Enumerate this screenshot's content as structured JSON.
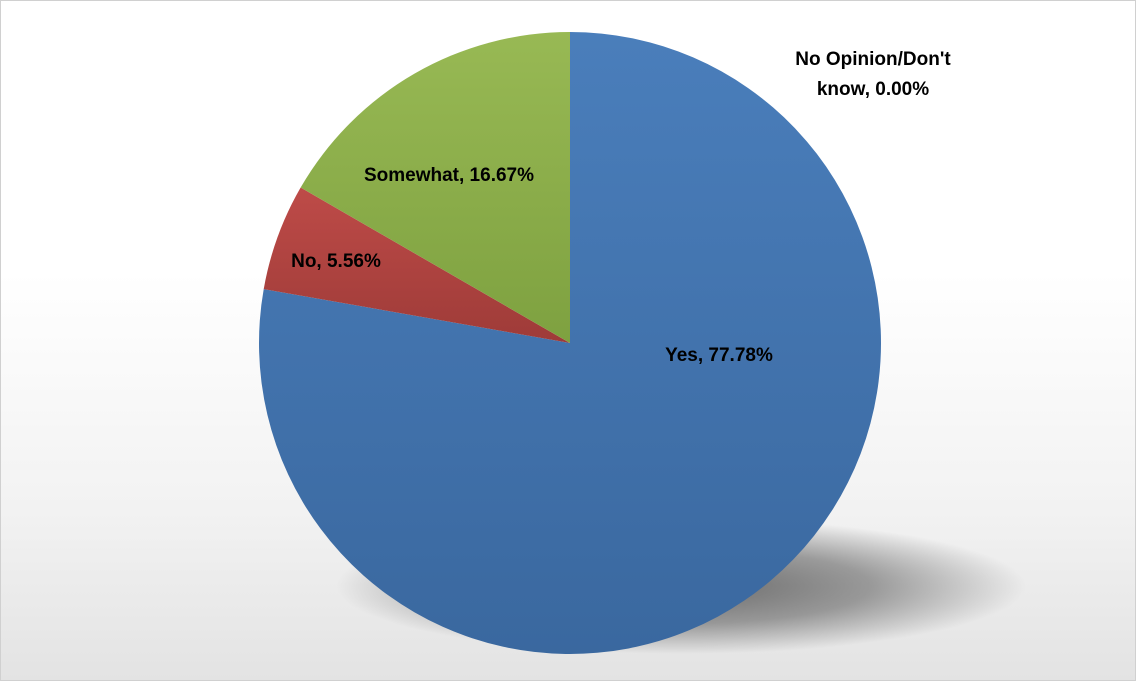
{
  "chart_data": {
    "type": "pie",
    "slices": [
      {
        "name": "Yes",
        "value": 77.78,
        "label": "Yes, 77.78%",
        "color": "#4a7ebb",
        "color_dark": "#3a689f"
      },
      {
        "name": "No",
        "value": 5.56,
        "label": "No, 5.56%",
        "color": "#be4b48",
        "color_dark": "#9e3b38"
      },
      {
        "name": "Somewhat",
        "value": 16.67,
        "label": "Somewhat, 16.67%",
        "color": "#98b954",
        "color_dark": "#7ea140"
      },
      {
        "name": "No Opinion/Don't know",
        "value": 0.0,
        "label_lines": [
          "No Opinion/Don't",
          "know, 0.00%"
        ],
        "color": "#7d60a0",
        "color_dark": "#644a85"
      }
    ],
    "start_angle_deg": 0,
    "direction": "clockwise",
    "legend": "none",
    "shadow": true
  }
}
